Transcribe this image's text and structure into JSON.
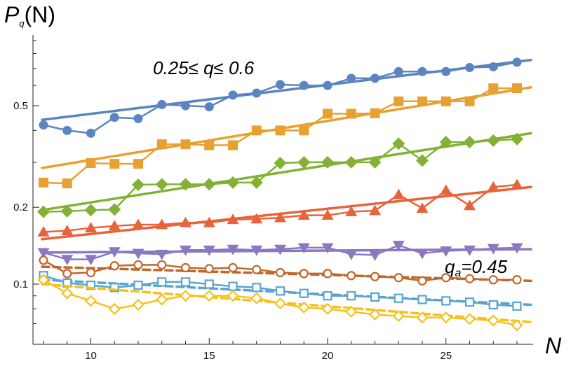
{
  "chart_data": {
    "type": "line",
    "ylabel_main": "P",
    "ylabel_sub": "q",
    "ylabel_tail": "(N)",
    "xlabel": "N",
    "xlim": [
      7.8,
      28.6
    ],
    "ylim": [
      0.06,
      0.95
    ],
    "yscale": "log",
    "x_ticks": [
      10,
      15,
      20,
      25
    ],
    "y_ticks": [
      0.1,
      0.2,
      0.5
    ],
    "y_tick_labels": [
      "0.1",
      "0.2",
      "0.5"
    ],
    "grid": false,
    "annotations": [
      {
        "id": "range",
        "text": "0.25≤ q≤ 0.6"
      },
      {
        "id": "qa",
        "text_main": "q",
        "text_sub": "a",
        "text_tail": "=0.45"
      }
    ],
    "x": [
      8,
      9,
      10,
      11,
      12,
      13,
      14,
      15,
      16,
      17,
      18,
      19,
      20,
      21,
      22,
      23,
      24,
      25,
      26,
      27,
      28
    ],
    "series": [
      {
        "color": "#5b85c0",
        "marker": "circle",
        "filled": true,
        "fit_dashed": false,
        "values": [
          0.42,
          0.4,
          0.39,
          0.45,
          0.445,
          0.505,
          0.5,
          0.495,
          0.55,
          0.56,
          0.605,
          0.6,
          0.6,
          0.64,
          0.64,
          0.68,
          0.68,
          0.68,
          0.705,
          0.71,
          0.74
        ],
        "fit": [
          0.44,
          0.755
        ]
      },
      {
        "color": "#e8a030",
        "marker": "square",
        "filled": true,
        "fit_dashed": false,
        "values": [
          0.25,
          0.248,
          0.298,
          0.296,
          0.296,
          0.353,
          0.353,
          0.35,
          0.35,
          0.4,
          0.4,
          0.4,
          0.465,
          0.465,
          0.467,
          0.52,
          0.52,
          0.52,
          0.52,
          0.585,
          0.585
        ],
        "fit": [
          0.285,
          0.59
        ]
      },
      {
        "color": "#82b134",
        "marker": "diamond",
        "filled": true,
        "fit_dashed": false,
        "values": [
          0.192,
          0.193,
          0.195,
          0.196,
          0.245,
          0.246,
          0.246,
          0.246,
          0.25,
          0.25,
          0.298,
          0.3,
          0.3,
          0.3,
          0.3,
          0.355,
          0.305,
          0.36,
          0.36,
          0.365,
          0.37
        ],
        "fit": [
          0.195,
          0.39
        ]
      },
      {
        "color": "#e8633a",
        "marker": "triangle-up",
        "filled": true,
        "fit_dashed": false,
        "values": [
          0.16,
          0.162,
          0.166,
          0.169,
          0.171,
          0.171,
          0.174,
          0.174,
          0.179,
          0.18,
          0.182,
          0.186,
          0.186,
          0.192,
          0.194,
          0.224,
          0.198,
          0.233,
          0.203,
          0.24,
          0.245
        ],
        "fit": [
          0.15,
          0.24
        ]
      },
      {
        "color": "#8c78c0",
        "marker": "triangle-down",
        "filled": true,
        "fit_dashed": false,
        "values": [
          0.133,
          0.125,
          0.125,
          0.134,
          0.132,
          0.131,
          0.136,
          0.136,
          0.137,
          0.136,
          0.137,
          0.139,
          0.139,
          0.131,
          0.13,
          0.142,
          0.132,
          0.135,
          0.136,
          0.138,
          0.139
        ],
        "fit": [
          0.133,
          0.137
        ]
      },
      {
        "color": "#c0672c",
        "marker": "circle",
        "filled": false,
        "fit_dashed": true,
        "values": [
          0.124,
          0.11,
          0.111,
          0.118,
          0.119,
          0.119,
          0.116,
          0.115,
          0.116,
          0.114,
          0.111,
          0.11,
          0.11,
          0.108,
          0.107,
          0.106,
          0.103,
          0.106,
          0.105,
          0.104,
          0.104
        ],
        "fit": [
          0.117,
          0.103
        ]
      },
      {
        "color": "#5aa5d0",
        "marker": "square",
        "filled": false,
        "fit_dashed": true,
        "values": [
          0.108,
          0.101,
          0.099,
          0.097,
          0.099,
          0.102,
          0.102,
          0.1,
          0.098,
          0.097,
          0.094,
          0.092,
          0.09,
          0.09,
          0.089,
          0.088,
          0.087,
          0.086,
          0.085,
          0.083,
          0.082
        ],
        "fit": [
          0.104,
          0.083
        ]
      },
      {
        "color": "#f4c21a",
        "marker": "diamond",
        "filled": false,
        "fit_dashed": true,
        "values": [
          0.104,
          0.092,
          0.086,
          0.08,
          0.083,
          0.087,
          0.09,
          0.09,
          0.09,
          0.088,
          0.084,
          0.081,
          0.08,
          0.078,
          0.076,
          0.075,
          0.074,
          0.074,
          0.073,
          0.072,
          0.069
        ],
        "fit": [
          0.1,
          0.071
        ]
      }
    ]
  }
}
